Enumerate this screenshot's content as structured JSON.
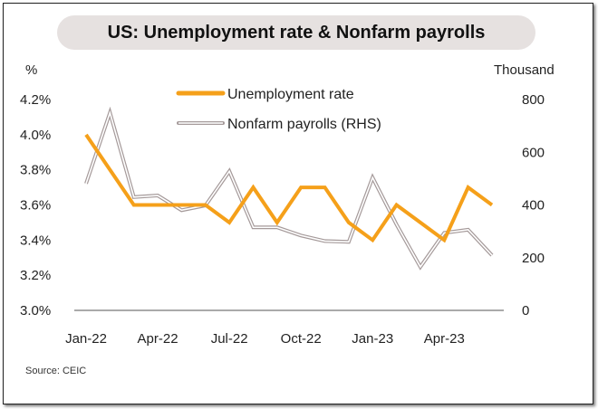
{
  "chart_data": {
    "type": "line",
    "title": "US: Unemployment rate & Nonfarm payrolls",
    "ylabel_left": "%",
    "ylabel_right": "Thousand",
    "source": "Source: CEIC",
    "x": [
      "Jan-22",
      "Feb-22",
      "Mar-22",
      "Apr-22",
      "May-22",
      "Jun-22",
      "Jul-22",
      "Aug-22",
      "Sep-22",
      "Oct-22",
      "Nov-22",
      "Dec-22",
      "Jan-23",
      "Feb-23",
      "Mar-23",
      "Apr-23",
      "May-23",
      "Jun-23"
    ],
    "xtick_labels": [
      "Jan-22",
      "Apr-22",
      "Jul-22",
      "Oct-22",
      "Jan-23",
      "Apr-23"
    ],
    "ylim_left": [
      3.0,
      4.2
    ],
    "yticks_left": [
      "3.0%",
      "3.2%",
      "3.4%",
      "3.6%",
      "3.8%",
      "4.0%",
      "4.2%"
    ],
    "ylim_right": [
      0,
      800
    ],
    "yticks_right": [
      "0",
      "200",
      "400",
      "600",
      "800"
    ],
    "series": [
      {
        "name": "Unemployment rate",
        "axis": "left",
        "color": "#f5a01a",
        "values": [
          4.0,
          3.8,
          3.6,
          3.6,
          3.6,
          3.6,
          3.5,
          3.7,
          3.5,
          3.7,
          3.7,
          3.5,
          3.4,
          3.6,
          3.5,
          3.4,
          3.7,
          3.6
        ]
      },
      {
        "name": "Nonfarm payrolls (RHS)",
        "axis": "right",
        "color": "#a59a9a",
        "values": [
          481,
          750,
          430,
          436,
          380,
          398,
          528,
          315,
          315,
          284,
          263,
          260,
          504,
          326,
          165,
          294,
          306,
          209
        ]
      }
    ],
    "legend": "top-center",
    "grid": false
  }
}
